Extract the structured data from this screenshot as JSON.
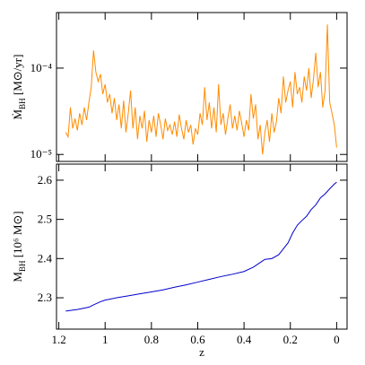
{
  "chart_data": [
    {
      "type": "line",
      "log_y": true,
      "xtick_labels": false,
      "ylabel": "Ṁ",
      "ylabel_sub": "BH",
      "ylabel_unit": " [M⊙/yr]",
      "xlim": [
        1.21,
        -0.045
      ],
      "xticks": [
        1.2,
        1,
        0.8,
        0.6,
        0.4,
        0.2,
        0
      ],
      "ylim": [
        8.3e-06,
        0.00044
      ],
      "yticks": [
        {
          "value": 1e-05,
          "label": "10⁻⁵"
        },
        {
          "value": 0.0001,
          "label": "10⁻⁴"
        }
      ],
      "color": "#ff8c00",
      "x": [
        1.17,
        1.16,
        1.15,
        1.14,
        1.13,
        1.12,
        1.11,
        1.1,
        1.09,
        1.08,
        1.07,
        1.06,
        1.05,
        1.04,
        1.03,
        1.02,
        1.01,
        1.0,
        0.99,
        0.98,
        0.97,
        0.96,
        0.95,
        0.94,
        0.93,
        0.92,
        0.91,
        0.9,
        0.89,
        0.88,
        0.87,
        0.86,
        0.85,
        0.84,
        0.83,
        0.82,
        0.81,
        0.8,
        0.79,
        0.78,
        0.77,
        0.76,
        0.75,
        0.74,
        0.73,
        0.72,
        0.71,
        0.7,
        0.69,
        0.68,
        0.67,
        0.66,
        0.65,
        0.64,
        0.63,
        0.62,
        0.61,
        0.6,
        0.59,
        0.58,
        0.57,
        0.56,
        0.55,
        0.54,
        0.53,
        0.52,
        0.51,
        0.5,
        0.49,
        0.48,
        0.47,
        0.46,
        0.45,
        0.44,
        0.43,
        0.42,
        0.41,
        0.4,
        0.39,
        0.38,
        0.37,
        0.36,
        0.35,
        0.34,
        0.33,
        0.32,
        0.31,
        0.3,
        0.29,
        0.28,
        0.27,
        0.26,
        0.25,
        0.24,
        0.23,
        0.22,
        0.21,
        0.2,
        0.19,
        0.18,
        0.17,
        0.16,
        0.15,
        0.14,
        0.13,
        0.12,
        0.11,
        0.1,
        0.09,
        0.08,
        0.07,
        0.06,
        0.05,
        0.04,
        0.03,
        0.02,
        0.01,
        0.0
      ],
      "values": [
        1.8e-05,
        1.6e-05,
        3.5e-05,
        2e-05,
        2.6e-05,
        1.9e-05,
        3e-05,
        2.2e-05,
        3.5e-05,
        2.5e-05,
        4e-05,
        6e-05,
        0.00016,
        9e-05,
        7e-05,
        8.5e-05,
        5e-05,
        6.5e-05,
        4e-05,
        5e-05,
        3e-05,
        4.5e-05,
        2.5e-05,
        3.8e-05,
        2e-05,
        4.2e-05,
        1.8e-05,
        3e-05,
        5.5e-05,
        2e-05,
        3.5e-05,
        1.5e-05,
        2.8e-05,
        2e-05,
        3.2e-05,
        1.4e-05,
        2.5e-05,
        1.8e-05,
        2.8e-05,
        1.6e-05,
        3e-05,
        2.2e-05,
        1.5e-05,
        2.6e-05,
        1.9e-05,
        2.2e-05,
        1.7e-05,
        2.4e-05,
        1.6e-05,
        2.9e-05,
        2e-05,
        1.5e-05,
        2.5e-05,
        1.8e-05,
        2.2e-05,
        1.3e-05,
        2e-05,
        1.7e-05,
        3e-05,
        2.2e-05,
        6e-05,
        2.5e-05,
        4e-05,
        2e-05,
        3.5e-05,
        1.8e-05,
        6.5e-05,
        2.2e-05,
        3e-05,
        1.7e-05,
        2.6e-05,
        3.8e-05,
        2e-05,
        2.8e-05,
        1.9e-05,
        3.2e-05,
        2.3e-05,
        1.6e-05,
        2.5e-05,
        1.9e-05,
        5e-05,
        2.6e-05,
        3.8e-05,
        1.5e-05,
        2.2e-05,
        1e-05,
        1.8e-05,
        2.5e-05,
        1.4e-05,
        3e-05,
        1.8e-05,
        2.4e-05,
        4.5e-05,
        3e-05,
        8e-05,
        4e-05,
        5.5e-05,
        7e-05,
        3.5e-05,
        9e-05,
        5e-05,
        6e-05,
        4e-05,
        8e-05,
        5.5e-05,
        0.0001,
        4.5e-05,
        7.5e-05,
        0.00015,
        6e-05,
        9e-05,
        3.5e-05,
        5.5e-05,
        0.00032,
        4e-05,
        3e-05,
        2.2e-05,
        1.2e-05
      ]
    },
    {
      "type": "line",
      "log_y": false,
      "xtick_labels": true,
      "ylabel": "M",
      "ylabel_sub": "BH",
      "ylabel_unit": " [10⁶ M⊙]",
      "xlabel": "z",
      "xlim": [
        1.21,
        -0.045
      ],
      "xticks": [
        1.2,
        1,
        0.8,
        0.6,
        0.4,
        0.2,
        0
      ],
      "ylim": [
        2.22,
        2.641
      ],
      "yticks": [
        2.3,
        2.4,
        2.5,
        2.6
      ],
      "color": "#0000cc",
      "x": [
        1.17,
        1.12,
        1.07,
        1.05,
        1.02,
        1.0,
        0.95,
        0.9,
        0.85,
        0.8,
        0.75,
        0.7,
        0.65,
        0.6,
        0.55,
        0.5,
        0.45,
        0.4,
        0.36,
        0.33,
        0.31,
        0.28,
        0.25,
        0.23,
        0.21,
        0.19,
        0.17,
        0.15,
        0.13,
        0.11,
        0.09,
        0.07,
        0.05,
        0.03,
        0.01,
        0.0
      ],
      "values": [
        2.266,
        2.27,
        2.276,
        2.282,
        2.29,
        2.294,
        2.3,
        2.305,
        2.31,
        2.315,
        2.32,
        2.327,
        2.333,
        2.34,
        2.347,
        2.354,
        2.36,
        2.367,
        2.378,
        2.39,
        2.398,
        2.4,
        2.41,
        2.425,
        2.44,
        2.465,
        2.485,
        2.497,
        2.508,
        2.525,
        2.537,
        2.555,
        2.565,
        2.578,
        2.59,
        2.595
      ]
    }
  ]
}
